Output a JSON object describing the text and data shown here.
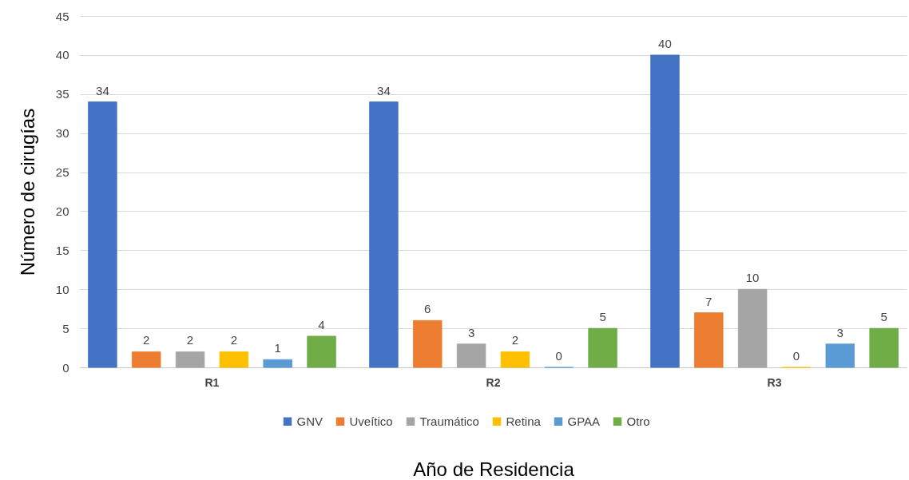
{
  "chart_data": {
    "type": "bar",
    "xlabel": "Año de Residencia",
    "ylabel": "Número de cirugías",
    "categories": [
      "R1",
      "R2",
      "R3"
    ],
    "series": [
      {
        "name": "GNV",
        "color": "#4472c4",
        "values": [
          34,
          34,
          40
        ]
      },
      {
        "name": "Uveítico",
        "color": "#ed7d31",
        "values": [
          2,
          6,
          7
        ]
      },
      {
        "name": "Traumático",
        "color": "#a5a5a5",
        "values": [
          2,
          3,
          10
        ]
      },
      {
        "name": "Retina",
        "color": "#ffc000",
        "values": [
          2,
          2,
          0
        ]
      },
      {
        "name": "GPAA",
        "color": "#5b9bd5",
        "values": [
          1,
          0,
          3
        ]
      },
      {
        "name": "Otro",
        "color": "#70ad47",
        "values": [
          4,
          5,
          5
        ]
      }
    ],
    "ylim": [
      0,
      45
    ],
    "yticks": [
      0,
      5,
      10,
      15,
      20,
      25,
      30,
      35,
      40,
      45
    ],
    "grid": "y",
    "legend": "bottom",
    "data_labels": true
  }
}
